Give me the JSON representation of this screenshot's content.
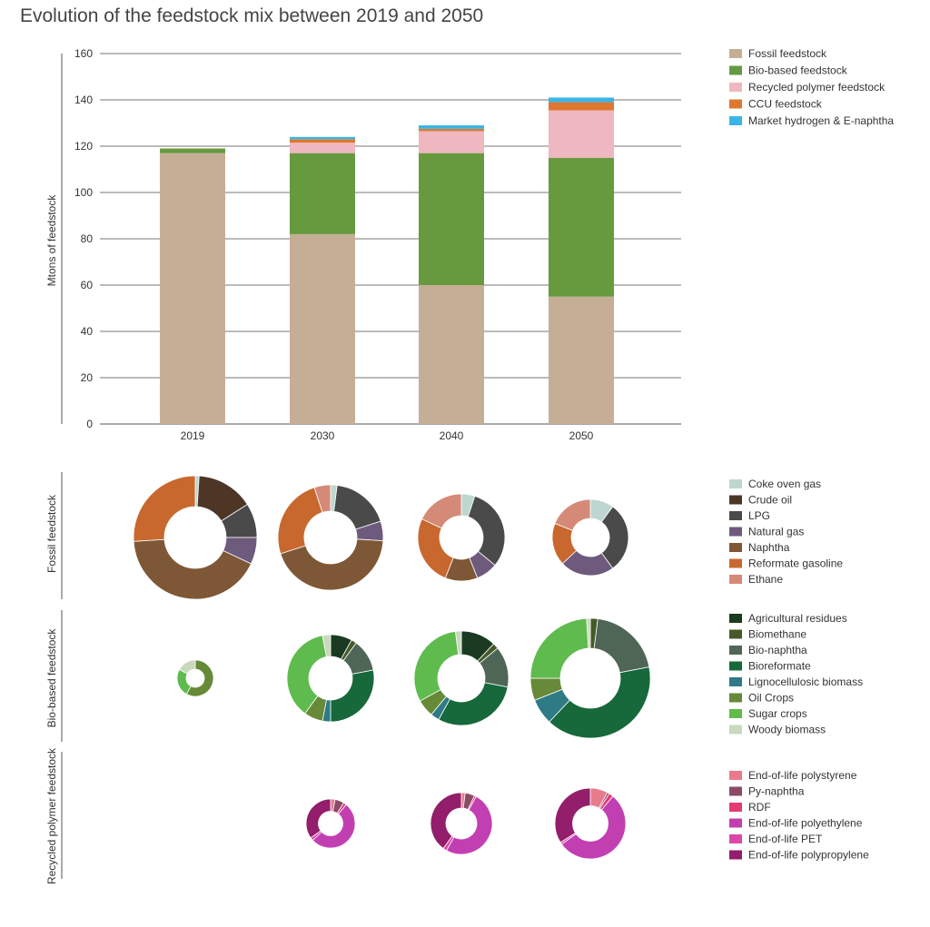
{
  "title": "Evolution of the feedstock mix between 2019 and 2050",
  "chart_data": [
    {
      "type": "bar",
      "stacked": true,
      "ylabel": "Mtons of feedstock",
      "ylim": [
        0,
        160
      ],
      "yticks": [
        0,
        20,
        40,
        60,
        80,
        100,
        120,
        140,
        160
      ],
      "grid": true,
      "legend": "right",
      "categories": [
        "2019",
        "2030",
        "2040",
        "2050"
      ],
      "series": [
        {
          "name": "Fossil feedstock",
          "color": "#c6ae96",
          "values": [
            117,
            82,
            60,
            55
          ]
        },
        {
          "name": "Bio-based feedstock",
          "color": "#679a3f",
          "values": [
            2,
            35,
            57,
            60
          ]
        },
        {
          "name": "Recycled polymer feedstock",
          "color": "#efb7c0",
          "values": [
            0,
            4.5,
            9.5,
            20.5
          ]
        },
        {
          "name": "CCU feedstock",
          "color": "#de7830",
          "values": [
            0,
            1.5,
            1.0,
            3.5
          ]
        },
        {
          "name": "Market hydrogen & E-naphtha",
          "color": "#3ab6e6",
          "values": [
            0,
            1.0,
            1.5,
            2.0
          ]
        }
      ]
    },
    {
      "type": "pie",
      "variant": "donut",
      "group_label": "Fossil feedstock",
      "categories": [
        "2019",
        "2030",
        "2040",
        "2050"
      ],
      "legend": [
        {
          "name": "Coke oven gas",
          "color": "#bdd6d0"
        },
        {
          "name": "Crude oil",
          "color": "#4e3627"
        },
        {
          "name": "LPG",
          "color": "#4a4a4a"
        },
        {
          "name": "Natural gas",
          "color": "#6d5a7c"
        },
        {
          "name": "Naphtha",
          "color": "#7e5836"
        },
        {
          "name": "Reformate gasoline",
          "color": "#c8682e"
        },
        {
          "name": "Ethane",
          "color": "#d58a78"
        }
      ],
      "slices": [
        [
          0.01,
          0.15,
          0.09,
          0.07,
          0.42,
          0.26,
          0.0
        ],
        [
          0.02,
          0.0,
          0.18,
          0.06,
          0.44,
          0.25,
          0.05
        ],
        [
          0.05,
          0.0,
          0.31,
          0.08,
          0.12,
          0.26,
          0.18
        ],
        [
          0.1,
          0.0,
          0.3,
          0.23,
          0.0,
          0.18,
          0.19
        ]
      ]
    },
    {
      "type": "pie",
      "variant": "donut",
      "group_label": "Bio-based feedstock",
      "categories": [
        "2019",
        "2030",
        "2040",
        "2050"
      ],
      "legend": [
        {
          "name": "Agricultural residues",
          "color": "#1a3b22"
        },
        {
          "name": "Biomethane",
          "color": "#455a2a"
        },
        {
          "name": "Bio-naphtha",
          "color": "#4f6656"
        },
        {
          "name": "Bioreformate",
          "color": "#17683a"
        },
        {
          "name": "Lignocellulosic biomass",
          "color": "#2e7a85"
        },
        {
          "name": "Oil Crops",
          "color": "#668a38"
        },
        {
          "name": "Sugar crops",
          "color": "#5fbb4e"
        },
        {
          "name": "Woody biomass",
          "color": "#c9d9bc"
        }
      ],
      "slices": [
        [
          0.0,
          0.0,
          0.0,
          0.0,
          0.0,
          0.58,
          0.25,
          0.17
        ],
        [
          0.08,
          0.02,
          0.12,
          0.28,
          0.03,
          0.07,
          0.37,
          0.03
        ],
        [
          0.12,
          0.02,
          0.14,
          0.3,
          0.03,
          0.06,
          0.31,
          0.02
        ],
        [
          0.0,
          0.02,
          0.2,
          0.4,
          0.07,
          0.06,
          0.24,
          0.01
        ]
      ]
    },
    {
      "type": "pie",
      "variant": "donut",
      "group_label": "Recycled polymer feedstock",
      "categories": [
        "2019",
        "2030",
        "2040",
        "2050"
      ],
      "legend": [
        {
          "name": "End-of-life polystyrene",
          "color": "#e77b8c"
        },
        {
          "name": "Py-naphtha",
          "color": "#8a4a68"
        },
        {
          "name": "RDF",
          "color": "#e23b78"
        },
        {
          "name": "End-of-life polyethylene",
          "color": "#c23fb2"
        },
        {
          "name": "End-of-life PET",
          "color": "#dc48a8"
        },
        {
          "name": "End-of-life polypropylene",
          "color": "#931e6b"
        }
      ],
      "slices": [
        [
          0,
          0,
          0,
          0,
          0,
          0
        ],
        [
          0.03,
          0.06,
          0.02,
          0.52,
          0.02,
          0.35
        ],
        [
          0.02,
          0.05,
          0.01,
          0.5,
          0.02,
          0.4
        ],
        [
          0.08,
          0.01,
          0.02,
          0.54,
          0.01,
          0.34
        ]
      ]
    }
  ]
}
